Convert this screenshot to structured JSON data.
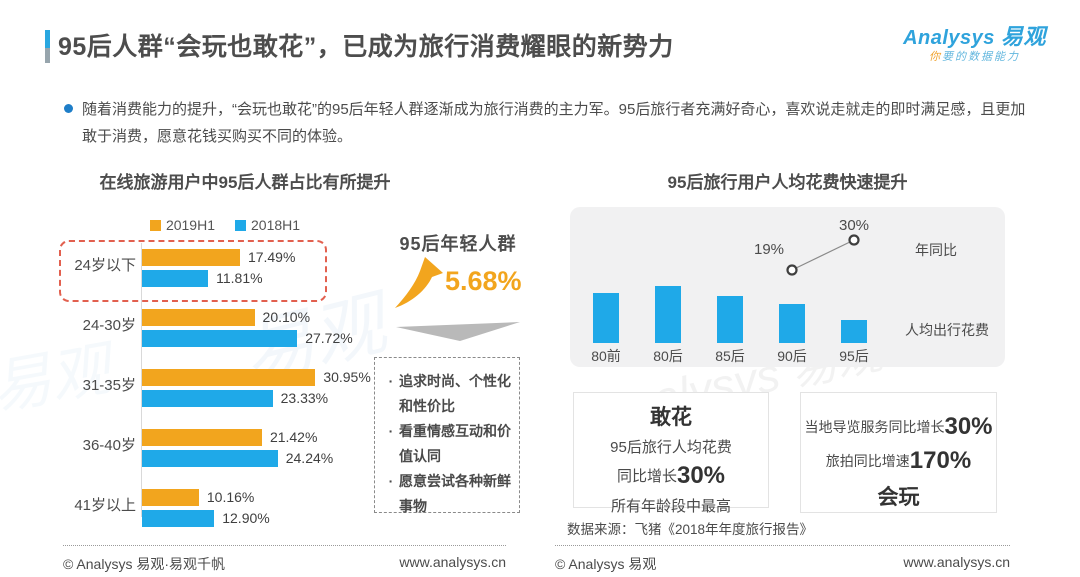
{
  "header": {
    "title": "95后人群“会玩也敢花”，已成为旅行消费耀眼的新势力",
    "logo": {
      "brand": "Analysys",
      "brand_cn": "易观",
      "tagline_first": "你",
      "tagline_rest": "要的数据能力"
    }
  },
  "intro": {
    "text": "随着消费能力的提升，“会玩也敢花”的95后年轻人群逐渐成为旅行消费的主力军。95后旅行者充满好奇心，喜欢说走就走的即时满足感，且更加敢于消费，愿意花钱买购买不同的体验。"
  },
  "middle": {
    "headline": "95后年轻人群",
    "growth_value": "5.68%",
    "traits": [
      "追求时尚、个性化和性价比",
      "看重情感互动和价值认同",
      "愿意尝试各种新鲜事物"
    ]
  },
  "right_chart": {
    "line_label": "年同比",
    "bar_label": "人均出行花费"
  },
  "callouts": {
    "ganhua": {
      "title": "敢花",
      "line1": "95后旅行人均花费",
      "line2_prefix": "同比增长",
      "line2_value": "30%",
      "line3": "所有年龄段中最高"
    },
    "huiwan": {
      "line1_prefix": "当地导览服务同比增长",
      "line1_value": "30%",
      "line2_prefix": "旅拍同比增速",
      "line2_value": "170%",
      "title": "会玩"
    }
  },
  "source": "数据来源：飞猪《2018年年度旅行报告》",
  "footer": {
    "left_copyright": "© Analysys 易观·易观千帆",
    "left_url": "www.analysys.cn",
    "right_copyright": "© Analysys 易观",
    "right_url": "www.analysys.cn"
  },
  "watermarks": [
    "易观",
    "analysys 易观"
  ],
  "colors": {
    "orange": "#F2A51E",
    "blue": "#1FA9E8",
    "red_dashed": "#E2604F",
    "title_text": "#4D4D4D",
    "panel_bg": "#F1F1F2",
    "logo_blue": "#2FA3DC"
  },
  "chart_data": [
    {
      "type": "bar",
      "orientation": "horizontal",
      "title": "在线旅游用户中95后人群占比有所提升",
      "categories": [
        "24岁以下",
        "24-30岁",
        "31-35岁",
        "36-40岁",
        "41岁以上"
      ],
      "series": [
        {
          "name": "2019H1",
          "color": "#F2A51E",
          "values": [
            17.49,
            20.1,
            30.95,
            21.42,
            10.16
          ]
        },
        {
          "name": "2018H1",
          "color": "#1FA9E8",
          "values": [
            11.81,
            27.72,
            23.33,
            24.24,
            12.9
          ]
        }
      ],
      "unit": "%",
      "value_labels": true,
      "legend_position": "top",
      "highlight": {
        "category": "24岁以下",
        "style": "red-dashed-outline"
      }
    },
    {
      "type": "bar",
      "title": "95后旅行用户人均花费快速提升",
      "categories": [
        "80前",
        "80后",
        "85后",
        "90后",
        "95后"
      ],
      "series": [
        {
          "name": "人均出行花费",
          "color": "#1FA9E8",
          "relative_heights": [
            50,
            57,
            47,
            39,
            23
          ]
        }
      ],
      "axis_hidden": true,
      "overlay_line": {
        "name": "年同比",
        "points": [
          {
            "category": "90后",
            "label": "19%"
          },
          {
            "category": "95后",
            "label": "30%"
          }
        ]
      }
    }
  ]
}
